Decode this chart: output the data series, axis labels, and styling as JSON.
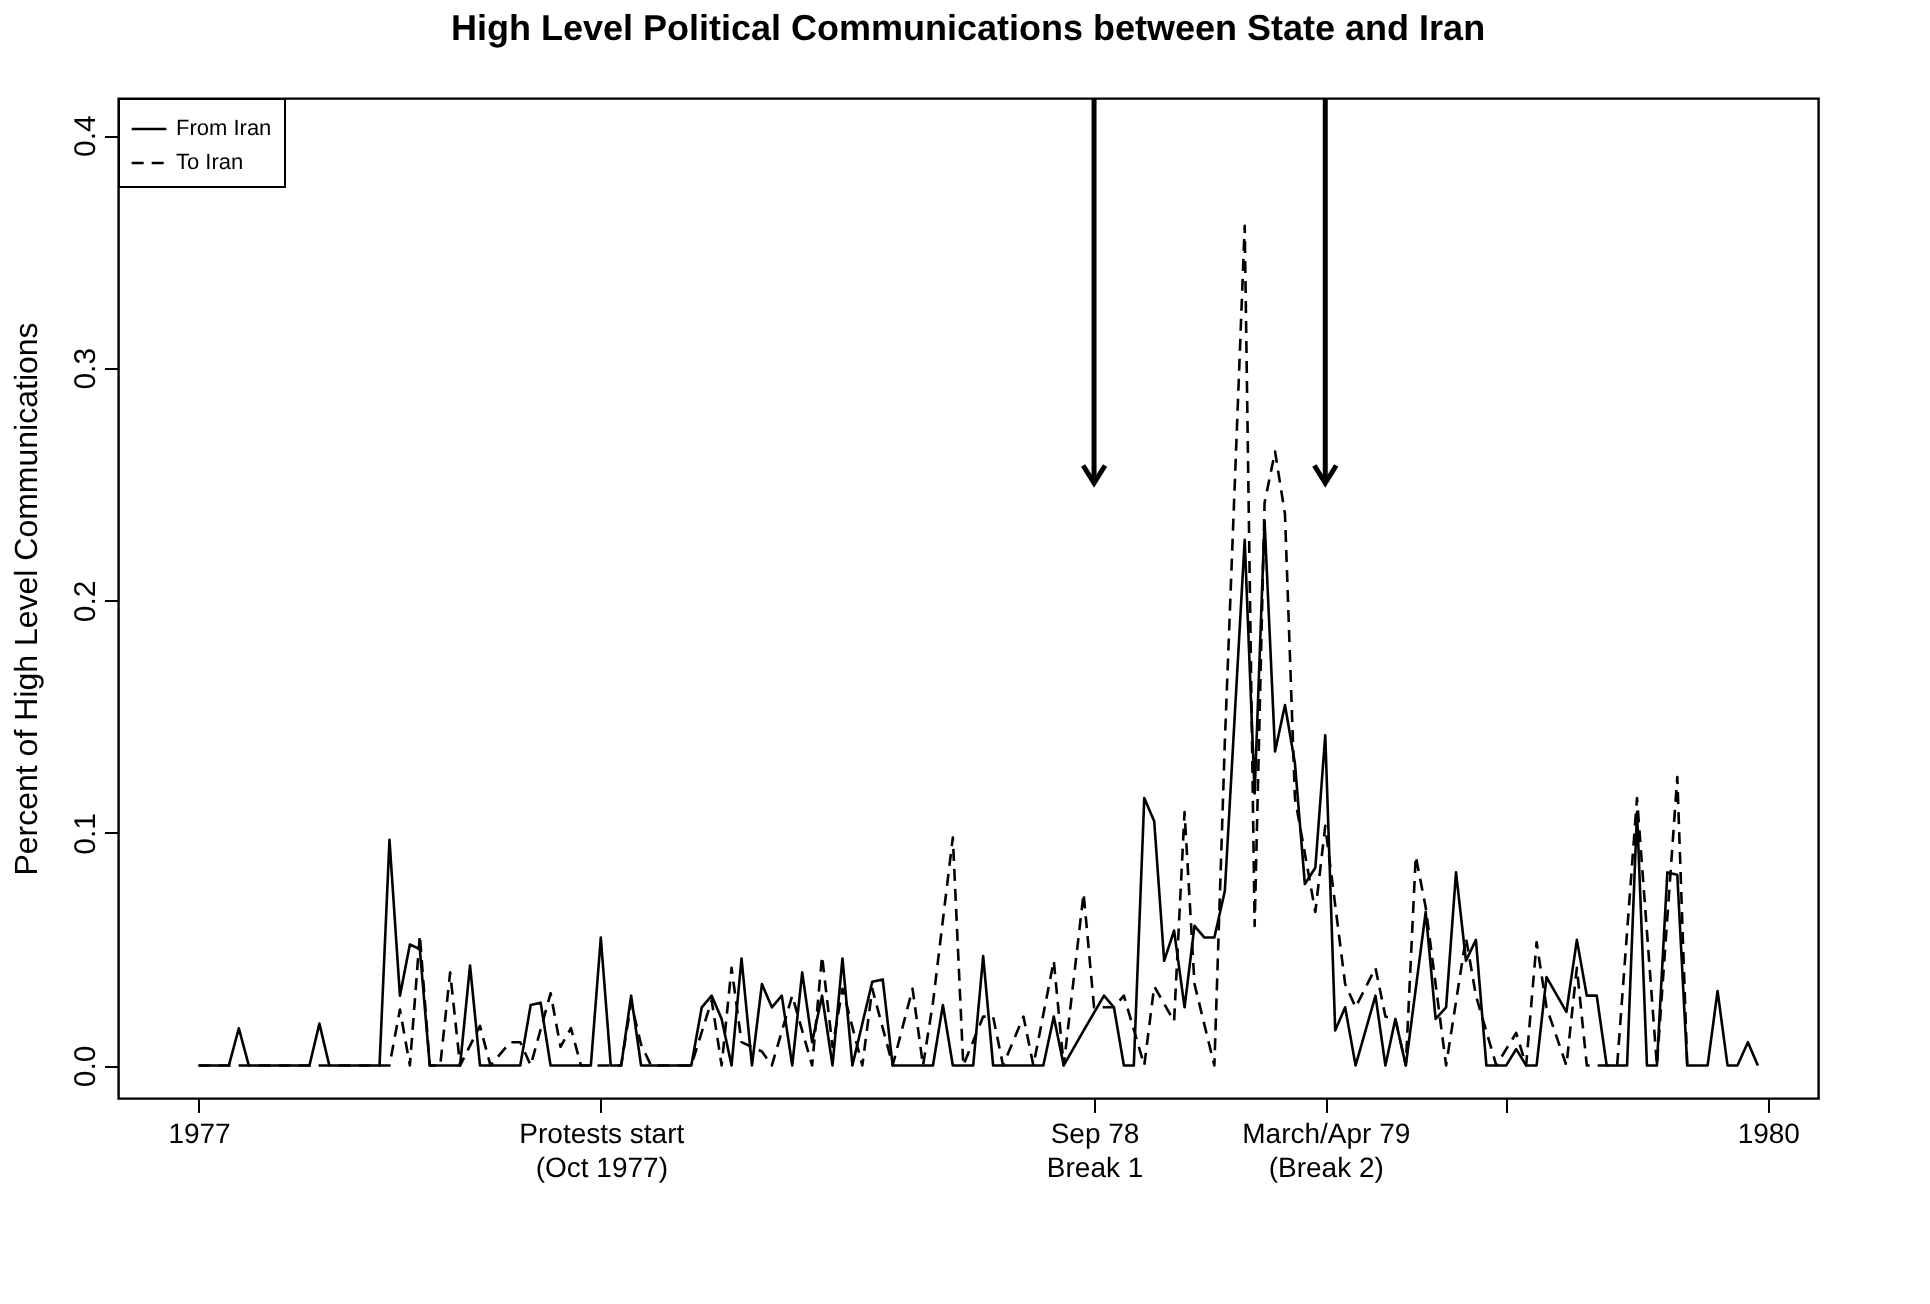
{
  "chart_data": {
    "type": "line",
    "title": "High Level Political Communications between State and Iran",
    "ylabel": "Percent of High Level Communications",
    "xlim": [
      1976.846,
      1980.096
    ],
    "ylim": [
      -0.014,
      0.416
    ],
    "xticks": [
      1977,
      {
        "value": 1977.769,
        "label": "Protests start\n(Oct 1977)"
      },
      {
        "value": 1978.712,
        "label": "Sep 78\nBreak 1"
      },
      {
        "value": 1979.154,
        "label": "March/Apr 79\n(Break 2)"
      },
      {
        "value": 1979.5,
        "label": null
      },
      1980
    ],
    "yticks": [
      {
        "value": 0,
        "label": "0.0"
      },
      {
        "value": 0.1,
        "label": "0.1"
      },
      {
        "value": 0.2,
        "label": "0.2"
      },
      {
        "value": 0.3,
        "label": "0.3"
      },
      {
        "value": 0.4,
        "label": "0.4"
      }
    ],
    "grid": false,
    "legend": "top left",
    "marker": "none",
    "series": [
      {
        "name": "From Iran",
        "color": "#000000",
        "line_style": "solid",
        "x": [
          1977,
          1977.058,
          1977.077,
          1977.096,
          1977.212,
          1977.231,
          1977.25,
          1977.346,
          1977.365,
          1977.385,
          1977.404,
          1977.423,
          1977.442,
          1977.5,
          1977.519,
          1977.538,
          1977.615,
          1977.635,
          1977.654,
          1977.673,
          1977.75,
          1977.769,
          1977.788,
          1977.808,
          1977.827,
          1977.846,
          1977.942,
          1977.962,
          1977.981,
          1978,
          1978.019,
          1978.038,
          1978.058,
          1978.077,
          1978.096,
          1978.115,
          1978.135,
          1978.154,
          1978.173,
          1978.192,
          1978.212,
          1978.231,
          1978.25,
          1978.288,
          1978.308,
          1978.327,
          1978.404,
          1978.423,
          1978.442,
          1978.481,
          1978.5,
          1978.519,
          1978.615,
          1978.635,
          1978.654,
          1978.692,
          1978.731,
          1978.75,
          1978.769,
          1978.788,
          1978.808,
          1978.827,
          1978.846,
          1978.865,
          1978.885,
          1978.904,
          1978.923,
          1978.942,
          1978.962,
          1979,
          1979.019,
          1979.038,
          1979.058,
          1979.077,
          1979.096,
          1979.115,
          1979.135,
          1979.154,
          1979.173,
          1979.192,
          1979.212,
          1979.25,
          1979.269,
          1979.288,
          1979.308,
          1979.346,
          1979.365,
          1979.385,
          1979.404,
          1979.423,
          1979.442,
          1979.462,
          1979.5,
          1979.519,
          1979.538,
          1979.558,
          1979.577,
          1979.615,
          1979.635,
          1979.654,
          1979.673,
          1979.692,
          1979.731,
          1979.75,
          1979.769,
          1979.788,
          1979.808,
          1979.827,
          1979.846,
          1979.885,
          1979.904,
          1979.923,
          1979.942,
          1979.962,
          1979.981
        ],
        "values": [
          0,
          0,
          0.016,
          0,
          0,
          0.018,
          0,
          0,
          0.097,
          0.03,
          0.052,
          0.05,
          0,
          0,
          0.043,
          0,
          0,
          0.026,
          0.027,
          0,
          0,
          0.055,
          0,
          0,
          0.03,
          0,
          0,
          0.025,
          0.03,
          0.02,
          0,
          0.046,
          0,
          0.035,
          0.025,
          0.03,
          0,
          0.04,
          0.01,
          0.03,
          0,
          0.046,
          0,
          0.036,
          0.037,
          0,
          0,
          0.026,
          0,
          0,
          0.047,
          0,
          0,
          0.021,
          0,
          0.015,
          0.03,
          0.025,
          0,
          0,
          0.115,
          0.105,
          0.045,
          0.058,
          0.025,
          0.06,
          0.055,
          0.055,
          0.075,
          0.226,
          0.117,
          0.234,
          0.135,
          0.155,
          0.13,
          0.078,
          0.085,
          0.142,
          0.015,
          0.025,
          0,
          0.03,
          0,
          0.02,
          0,
          0.066,
          0.02,
          0.025,
          0.083,
          0.045,
          0.054,
          0,
          0,
          0.007,
          0,
          0,
          0.038,
          0.023,
          0.054,
          0.03,
          0.03,
          0,
          0,
          0.109,
          0,
          0,
          0.083,
          0.082,
          0,
          0,
          0.032,
          0,
          0,
          0.01,
          0
        ]
      },
      {
        "name": "To Iran",
        "color": "#000000",
        "line_style": "dashed",
        "x": [
          1977,
          1977.365,
          1977.385,
          1977.404,
          1977.423,
          1977.442,
          1977.462,
          1977.481,
          1977.5,
          1977.538,
          1977.558,
          1977.596,
          1977.615,
          1977.635,
          1977.673,
          1977.692,
          1977.712,
          1977.731,
          1977.808,
          1977.827,
          1977.846,
          1977.865,
          1977.942,
          1977.981,
          1978,
          1978.019,
          1978.038,
          1978.077,
          1978.096,
          1978.135,
          1978.173,
          1978.192,
          1978.212,
          1978.231,
          1978.269,
          1978.288,
          1978.327,
          1978.365,
          1978.385,
          1978.404,
          1978.442,
          1978.462,
          1978.5,
          1978.519,
          1978.538,
          1978.577,
          1978.596,
          1978.635,
          1978.654,
          1978.692,
          1978.712,
          1978.75,
          1978.769,
          1978.808,
          1978.827,
          1978.865,
          1978.885,
          1978.904,
          1978.942,
          1978.962,
          1979,
          1979.019,
          1979.038,
          1979.058,
          1979.077,
          1979.096,
          1979.135,
          1979.154,
          1979.192,
          1979.212,
          1979.25,
          1979.269,
          1979.288,
          1979.308,
          1979.327,
          1979.346,
          1979.385,
          1979.423,
          1979.442,
          1979.481,
          1979.519,
          1979.538,
          1979.558,
          1979.577,
          1979.615,
          1979.635,
          1979.654,
          1979.712,
          1979.75,
          1979.788,
          1979.827,
          1979.846
        ],
        "values": [
          0,
          0,
          0.024,
          0,
          0.056,
          0,
          0,
          0.04,
          0,
          0.017,
          0,
          0.01,
          0.01,
          0,
          0.031,
          0.008,
          0.016,
          0,
          0,
          0.027,
          0.009,
          0,
          0,
          0.028,
          0,
          0.042,
          0.01,
          0.006,
          0,
          0.03,
          0,
          0.047,
          0.008,
          0.033,
          0,
          0.033,
          0,
          0.033,
          0,
          0.027,
          0.098,
          0,
          0.021,
          0.021,
          0,
          0.021,
          0,
          0.045,
          0,
          0.074,
          0.025,
          0.025,
          0.03,
          0,
          0.034,
          0.019,
          0.109,
          0.035,
          0,
          0.139,
          0.361,
          0.06,
          0.242,
          0.264,
          0.237,
          0.115,
          0.066,
          0.103,
          0.035,
          0.025,
          0.042,
          0.021,
          0.02,
          0,
          0.09,
          0.068,
          0,
          0.055,
          0.03,
          0,
          0.014,
          0,
          0.053,
          0.025,
          0,
          0.042,
          0,
          0,
          0.115,
          0,
          0.124,
          0
        ]
      }
    ]
  }
}
